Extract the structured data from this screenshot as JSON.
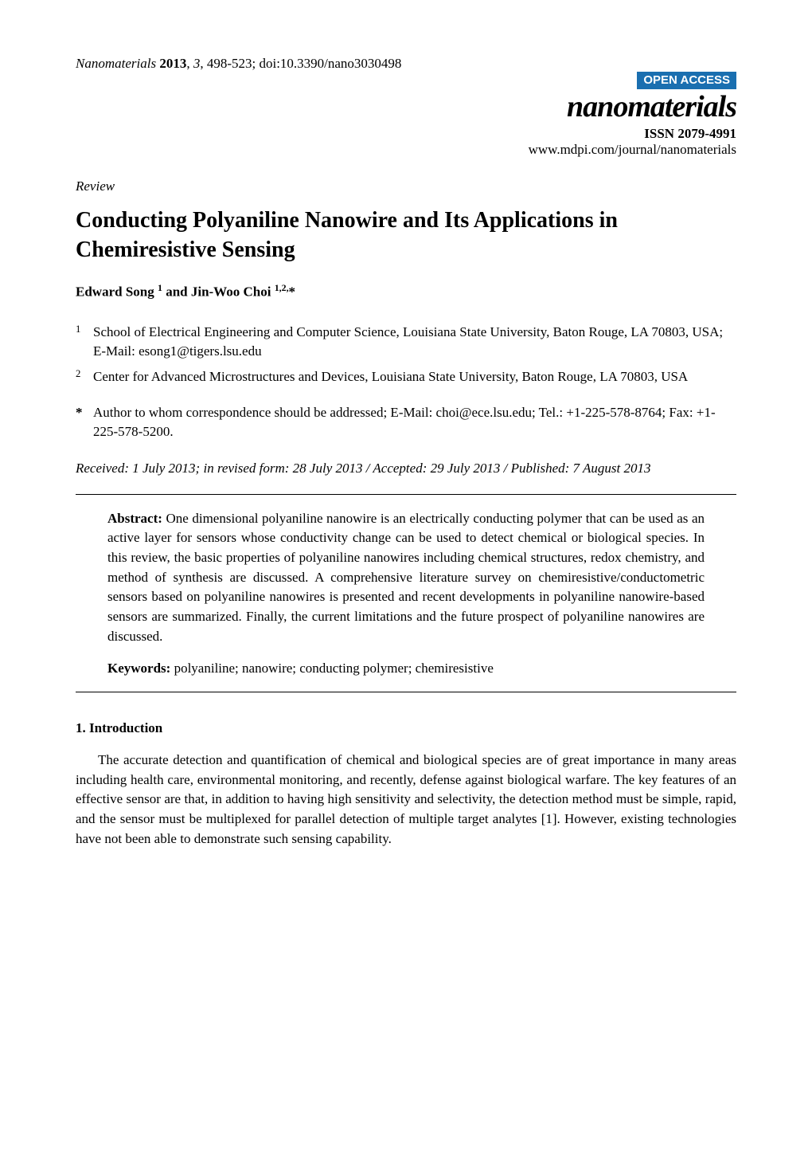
{
  "header": {
    "journal_name": "Nanomaterials",
    "year": "2013",
    "volume": "3",
    "pages": "498-523",
    "doi": "doi:10.3390/nano3030498",
    "open_access_label": "OPEN ACCESS",
    "journal_logo": "nanomaterials",
    "issn": "ISSN 2079-4991",
    "url": "www.mdpi.com/journal/nanomaterials"
  },
  "article": {
    "type": "Review",
    "title": "Conducting Polyaniline Nanowire and Its Applications in Chemiresistive Sensing",
    "authors_html": "Edward Song <sup>1</sup> and Jin-Woo Choi <sup>1,2,</sup>*"
  },
  "affiliations": [
    {
      "num": "1",
      "text": "School of Electrical Engineering and Computer Science, Louisiana State University, Baton Rouge, LA 70803, USA; E-Mail: esong1@tigers.lsu.edu"
    },
    {
      "num": "2",
      "text": "Center for Advanced Microstructures and Devices, Louisiana State University, Baton Rouge, LA 70803, USA"
    }
  ],
  "correspondence": {
    "marker": "*",
    "text": "Author to whom correspondence should be addressed; E-Mail: choi@ece.lsu.edu; Tel.: +1-225-578-8764; Fax: +1-225-578-5200."
  },
  "dates": "Received: 1 July 2013; in revised form: 28 July 2013 / Accepted: 29 July 2013 / Published: 7 August 2013",
  "abstract": {
    "label": "Abstract:",
    "text": "One dimensional polyaniline nanowire is an electrically conducting polymer that can be used as an active layer for sensors whose conductivity change can be used to detect chemical or biological species. In this review, the basic properties of polyaniline nanowires including chemical structures, redox chemistry, and method of synthesis are discussed. A comprehensive literature survey on chemiresistive/conductometric sensors based on polyaniline nanowires is presented and recent developments in polyaniline nanowire-based sensors are summarized. Finally, the current limitations and the future prospect of polyaniline nanowires are discussed."
  },
  "keywords": {
    "label": "Keywords:",
    "text": "polyaniline; nanowire; conducting polymer; chemiresistive"
  },
  "sections": [
    {
      "heading": "1. Introduction",
      "paragraphs": [
        "The accurate detection and quantification of chemical and biological species are of great importance in many areas including health care, environmental monitoring, and recently, defense against biological warfare. The key features of an effective sensor are that, in addition to having high sensitivity and selectivity, the detection method must be simple, rapid, and the sensor must be multiplexed for parallel detection of multiple target analytes [1]. However, existing technologies have not been able to demonstrate such sensing capability."
      ]
    }
  ],
  "colors": {
    "badge_bg": "#1a6fb0",
    "badge_text": "#ffffff",
    "text": "#000000",
    "background": "#ffffff"
  },
  "typography": {
    "body_font": "Times New Roman",
    "body_size_pt": 13,
    "title_size_pt": 21,
    "logo_size_pt": 28
  }
}
